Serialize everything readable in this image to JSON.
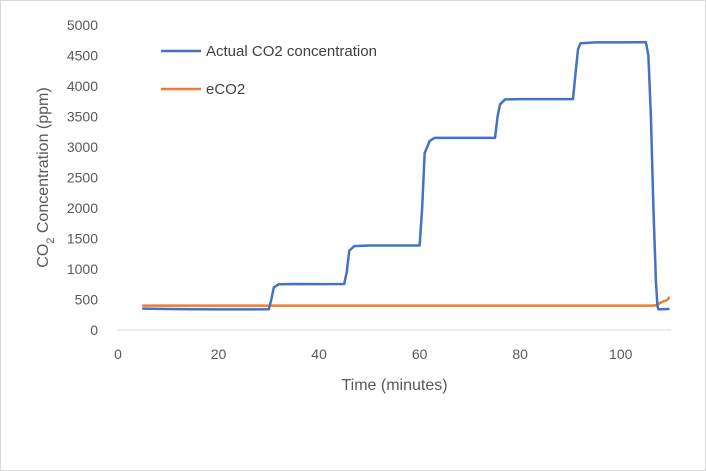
{
  "chart_data": {
    "type": "line",
    "title": "",
    "xlabel": "Time (minutes)",
    "ylabel_main": "CO",
    "ylabel_sub": "2",
    "ylabel_rest": " Concentration (ppm)",
    "xlim": [
      0,
      110
    ],
    "ylim": [
      0,
      5000
    ],
    "x_ticks": [
      0,
      20,
      40,
      60,
      80,
      100
    ],
    "y_ticks": [
      0,
      500,
      1000,
      1500,
      2000,
      2500,
      3000,
      3500,
      4000,
      4500,
      5000
    ],
    "grid": false,
    "legend_position": "top-left (inside plot)",
    "series": [
      {
        "name": "Actual CO2 concentration",
        "color": "#4472C4",
        "points": [
          [
            5,
            350
          ],
          [
            10,
            345
          ],
          [
            15,
            340
          ],
          [
            20,
            338
          ],
          [
            25,
            338
          ],
          [
            30,
            340
          ],
          [
            30.5,
            500
          ],
          [
            31,
            700
          ],
          [
            32,
            750
          ],
          [
            35,
            755
          ],
          [
            40,
            752
          ],
          [
            45,
            755
          ],
          [
            45.5,
            950
          ],
          [
            46,
            1300
          ],
          [
            47,
            1375
          ],
          [
            50,
            1385
          ],
          [
            55,
            1385
          ],
          [
            60,
            1385
          ],
          [
            60.5,
            2000
          ],
          [
            61,
            2900
          ],
          [
            62,
            3100
          ],
          [
            63,
            3150
          ],
          [
            70,
            3150
          ],
          [
            75,
            3150
          ],
          [
            75.5,
            3500
          ],
          [
            76,
            3700
          ],
          [
            77,
            3780
          ],
          [
            80,
            3785
          ],
          [
            85,
            3785
          ],
          [
            90.5,
            3785
          ],
          [
            91,
            4200
          ],
          [
            91.5,
            4600
          ],
          [
            92,
            4700
          ],
          [
            95,
            4715
          ],
          [
            100,
            4715
          ],
          [
            105,
            4720
          ],
          [
            105.5,
            4500
          ],
          [
            106,
            3500
          ],
          [
            106.5,
            2000
          ],
          [
            107,
            800
          ],
          [
            107.3,
            400
          ],
          [
            107.5,
            340
          ],
          [
            108,
            340
          ],
          [
            109.5,
            345
          ]
        ]
      },
      {
        "name": "eCO2",
        "color": "#ED7D31",
        "points": [
          [
            5,
            400
          ],
          [
            20,
            400
          ],
          [
            40,
            400
          ],
          [
            60,
            400
          ],
          [
            80,
            400
          ],
          [
            100,
            400
          ],
          [
            106.5,
            400
          ],
          [
            107,
            405
          ],
          [
            107.5,
            425
          ],
          [
            108,
            450
          ],
          [
            108.5,
            470
          ],
          [
            109,
            480
          ],
          [
            109.3,
            500
          ],
          [
            109.6,
            530
          ]
        ]
      }
    ]
  }
}
